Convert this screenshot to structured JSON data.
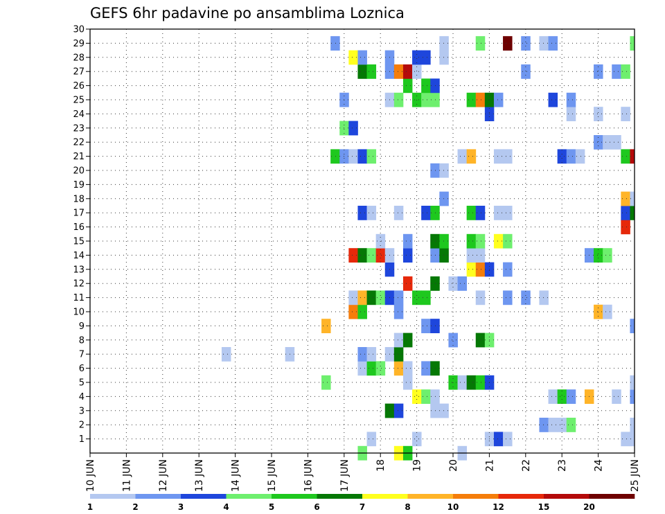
{
  "chart_data": {
    "type": "heatmap",
    "title": "GEFS 6hr padavine po ansamblima Loznica",
    "xlabel": "",
    "ylabel": "",
    "x_tick_labels": [
      "10 JUN",
      "11 JUN",
      "12 JUN",
      "13 JUN",
      "14 JUN",
      "15 JUN",
      "16 JUN",
      "17 JUN",
      "18",
      "19",
      "20",
      "21",
      "22",
      "23",
      "24",
      "25 JUN"
    ],
    "y_tick_labels": [
      "1",
      "2",
      "3",
      "4",
      "5",
      "6",
      "7",
      "8",
      "9",
      "10",
      "11",
      "12",
      "13",
      "14",
      "15",
      "16",
      "17",
      "18",
      "19",
      "20",
      "21",
      "22",
      "23",
      "24",
      "25",
      "26",
      "27",
      "28",
      "29",
      "30"
    ],
    "x_range_days": [
      10,
      25
    ],
    "y_range_members": [
      0,
      30
    ],
    "grid": "dotted",
    "legend_placement": "bottom",
    "legend_levels": [
      "1",
      "2",
      "3",
      "4",
      "5",
      "6",
      "7",
      "8",
      "10",
      "12",
      "15",
      "20"
    ],
    "legend_colors": [
      "#b4c8f0",
      "#6e96f0",
      "#1e46dc",
      "#6eef6e",
      "#1ec81e",
      "#057805",
      "#ffff1e",
      "#ffb428",
      "#f57d0a",
      "#e6280a",
      "#b40a0a",
      "#6e0000"
    ],
    "cells_format": "[day, member, precipitation_mm]",
    "cells": [
      [
        17.5,
        0,
        4.5
      ],
      [
        18.5,
        0,
        7.5
      ],
      [
        18.75,
        0,
        5.5
      ],
      [
        20.25,
        0,
        1.5
      ],
      [
        21.0,
        1,
        1.5
      ],
      [
        21.25,
        1,
        3.5
      ],
      [
        21.5,
        1,
        1.5
      ],
      [
        17.75,
        1,
        1.5
      ],
      [
        19.0,
        1,
        1.5
      ],
      [
        24.75,
        1,
        1.5
      ],
      [
        25.0,
        1,
        1.5
      ],
      [
        22.5,
        2,
        2.5
      ],
      [
        22.75,
        2,
        1.5
      ],
      [
        23.0,
        2,
        1.5
      ],
      [
        23.25,
        2,
        4.5
      ],
      [
        25.0,
        2,
        1.5
      ],
      [
        18.25,
        3,
        6.5
      ],
      [
        18.5,
        3,
        3.5
      ],
      [
        19.5,
        3,
        1.5
      ],
      [
        19.75,
        3,
        1.5
      ],
      [
        19.0,
        4,
        7.5
      ],
      [
        19.25,
        4,
        4.5
      ],
      [
        19.5,
        4,
        1.5
      ],
      [
        22.75,
        4,
        1.5
      ],
      [
        23.0,
        4,
        5.5
      ],
      [
        23.25,
        4,
        2.5
      ],
      [
        23.75,
        4,
        9.0
      ],
      [
        24.5,
        4,
        1.5
      ],
      [
        25.0,
        4,
        2.5
      ],
      [
        16.5,
        5,
        4.5
      ],
      [
        18.75,
        5,
        1.5
      ],
      [
        20.0,
        5,
        5.5
      ],
      [
        20.25,
        5,
        1.5
      ],
      [
        20.5,
        5,
        6.5
      ],
      [
        20.75,
        5,
        5.5
      ],
      [
        21.0,
        5,
        3.5
      ],
      [
        25.0,
        5,
        1.5
      ],
      [
        17.5,
        6,
        1.5
      ],
      [
        17.75,
        6,
        5.5
      ],
      [
        18.0,
        6,
        4.5
      ],
      [
        18.5,
        6,
        9.0
      ],
      [
        18.75,
        6,
        1.5
      ],
      [
        19.25,
        6,
        2.5
      ],
      [
        19.5,
        6,
        6.5
      ],
      [
        13.75,
        7,
        1.5
      ],
      [
        15.5,
        7,
        1.5
      ],
      [
        17.5,
        7,
        2.5
      ],
      [
        17.75,
        7,
        1.5
      ],
      [
        18.25,
        7,
        1.5
      ],
      [
        18.5,
        7,
        6.5
      ],
      [
        18.5,
        8,
        1.5
      ],
      [
        18.75,
        8,
        6.5
      ],
      [
        20.0,
        8,
        2.5
      ],
      [
        20.75,
        8,
        6.5
      ],
      [
        21.0,
        8,
        4.5
      ],
      [
        16.5,
        9,
        9.0
      ],
      [
        19.25,
        9,
        2.5
      ],
      [
        19.5,
        9,
        3.5
      ],
      [
        25.0,
        9,
        2.5
      ],
      [
        17.25,
        10,
        11.0
      ],
      [
        17.5,
        10,
        5.5
      ],
      [
        18.5,
        10,
        2.5
      ],
      [
        24.0,
        10,
        9.0
      ],
      [
        24.25,
        10,
        1.5
      ],
      [
        17.25,
        11,
        1.5
      ],
      [
        17.5,
        11,
        9.0
      ],
      [
        17.75,
        11,
        6.5
      ],
      [
        18.0,
        11,
        4.5
      ],
      [
        18.25,
        11,
        3.5
      ],
      [
        18.5,
        11,
        2.5
      ],
      [
        19.0,
        11,
        5.5
      ],
      [
        19.25,
        11,
        5.5
      ],
      [
        20.75,
        11,
        1.5
      ],
      [
        21.5,
        11,
        2.5
      ],
      [
        22.0,
        11,
        2.5
      ],
      [
        22.5,
        11,
        1.5
      ],
      [
        18.75,
        12,
        13.5
      ],
      [
        19.5,
        12,
        6.5
      ],
      [
        20.0,
        12,
        1.5
      ],
      [
        20.25,
        12,
        2.5
      ],
      [
        18.25,
        13,
        3.5
      ],
      [
        20.5,
        13,
        7.5
      ],
      [
        20.75,
        13,
        11.0
      ],
      [
        21.0,
        13,
        3.5
      ],
      [
        21.5,
        13,
        2.5
      ],
      [
        17.25,
        14,
        13.5
      ],
      [
        17.5,
        14,
        6.5
      ],
      [
        17.75,
        14,
        4.5
      ],
      [
        18.0,
        14,
        13.5
      ],
      [
        18.25,
        14,
        1.5
      ],
      [
        18.75,
        14,
        3.5
      ],
      [
        19.5,
        14,
        2.5
      ],
      [
        19.75,
        14,
        6.5
      ],
      [
        20.5,
        14,
        1.5
      ],
      [
        20.75,
        14,
        1.5
      ],
      [
        23.75,
        14,
        2.5
      ],
      [
        24.0,
        14,
        5.5
      ],
      [
        24.25,
        14,
        4.5
      ],
      [
        18.0,
        15,
        1.5
      ],
      [
        18.75,
        15,
        2.5
      ],
      [
        19.5,
        15,
        6.5
      ],
      [
        19.75,
        15,
        5.5
      ],
      [
        20.5,
        15,
        5.5
      ],
      [
        20.75,
        15,
        4.5
      ],
      [
        21.25,
        15,
        7.5
      ],
      [
        21.5,
        15,
        4.5
      ],
      [
        24.75,
        16,
        13.5
      ],
      [
        17.5,
        17,
        3.5
      ],
      [
        17.75,
        17,
        1.5
      ],
      [
        18.5,
        17,
        1.5
      ],
      [
        19.25,
        17,
        3.5
      ],
      [
        19.5,
        17,
        5.5
      ],
      [
        20.5,
        17,
        5.5
      ],
      [
        20.75,
        17,
        3.5
      ],
      [
        21.25,
        17,
        1.5
      ],
      [
        21.5,
        17,
        1.5
      ],
      [
        24.75,
        17,
        3.5
      ],
      [
        25.0,
        17,
        6.5
      ],
      [
        19.75,
        18,
        2.5
      ],
      [
        24.75,
        18,
        9.0
      ],
      [
        25.0,
        18,
        1.5
      ],
      [
        19.5,
        20,
        2.5
      ],
      [
        19.75,
        20,
        1.5
      ],
      [
        16.75,
        21,
        5.5
      ],
      [
        17.0,
        21,
        2.5
      ],
      [
        17.25,
        21,
        1.5
      ],
      [
        17.5,
        21,
        3.5
      ],
      [
        17.75,
        21,
        4.5
      ],
      [
        20.25,
        21,
        1.5
      ],
      [
        20.5,
        21,
        9.0
      ],
      [
        21.25,
        21,
        1.5
      ],
      [
        21.5,
        21,
        1.5
      ],
      [
        23.0,
        21,
        3.5
      ],
      [
        23.25,
        21,
        2.5
      ],
      [
        23.5,
        21,
        1.5
      ],
      [
        24.75,
        21,
        5.5
      ],
      [
        25.0,
        21,
        17.5
      ],
      [
        24.0,
        22,
        2.5
      ],
      [
        24.25,
        22,
        1.5
      ],
      [
        24.5,
        22,
        1.5
      ],
      [
        17.0,
        23,
        4.5
      ],
      [
        17.25,
        23,
        3.5
      ],
      [
        21.0,
        24,
        3.5
      ],
      [
        23.25,
        24,
        1.5
      ],
      [
        24.0,
        24,
        1.5
      ],
      [
        24.75,
        24,
        1.5
      ],
      [
        17.0,
        25,
        2.5
      ],
      [
        18.25,
        25,
        1.5
      ],
      [
        18.5,
        25,
        4.5
      ],
      [
        19.0,
        25,
        5.5
      ],
      [
        19.25,
        25,
        4.5
      ],
      [
        19.5,
        25,
        4.5
      ],
      [
        20.5,
        25,
        5.5
      ],
      [
        20.75,
        25,
        11.0
      ],
      [
        21.0,
        25,
        6.5
      ],
      [
        21.25,
        25,
        2.5
      ],
      [
        22.75,
        25,
        3.5
      ],
      [
        23.25,
        25,
        2.5
      ],
      [
        18.75,
        26,
        5.5
      ],
      [
        19.25,
        26,
        5.5
      ],
      [
        19.5,
        26,
        3.5
      ],
      [
        17.5,
        27,
        6.5
      ],
      [
        17.75,
        27,
        5.5
      ],
      [
        18.25,
        27,
        2.5
      ],
      [
        18.5,
        27,
        11.0
      ],
      [
        18.75,
        27,
        17.5
      ],
      [
        19.0,
        27,
        1.5
      ],
      [
        22.0,
        27,
        2.5
      ],
      [
        24.0,
        27,
        2.5
      ],
      [
        24.5,
        27,
        2.5
      ],
      [
        24.75,
        27,
        4.5
      ],
      [
        17.25,
        28,
        7.5
      ],
      [
        17.5,
        28,
        2.5
      ],
      [
        18.25,
        28,
        2.5
      ],
      [
        19.0,
        28,
        3.5
      ],
      [
        19.25,
        28,
        3.5
      ],
      [
        19.75,
        28,
        1.5
      ],
      [
        16.75,
        29,
        2.5
      ],
      [
        19.75,
        29,
        1.5
      ],
      [
        20.75,
        29,
        4.5
      ],
      [
        21.5,
        29,
        25.0
      ],
      [
        22.0,
        29,
        2.5
      ],
      [
        22.5,
        29,
        1.5
      ],
      [
        22.75,
        29,
        2.5
      ],
      [
        25.0,
        29,
        4.5
      ]
    ]
  }
}
